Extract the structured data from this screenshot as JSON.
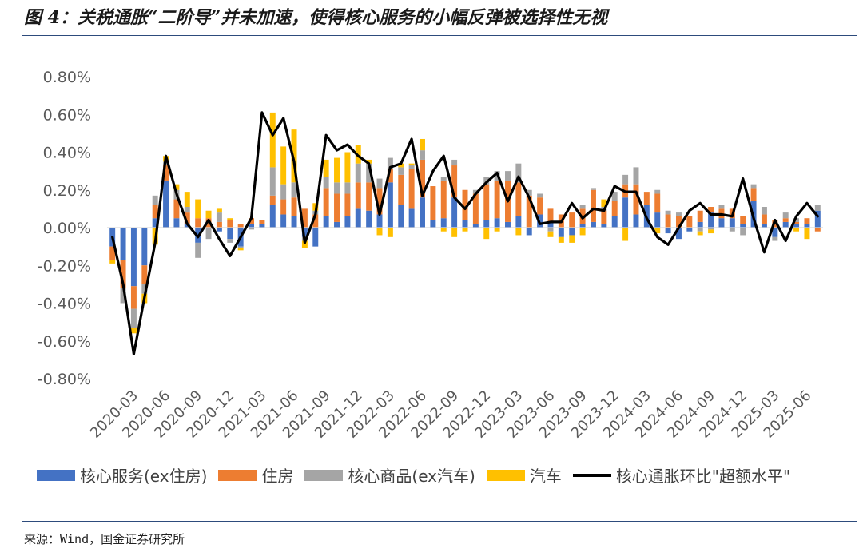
{
  "title": "图 4：关税通胀“二阶导”并未加速，使得核心服务的小幅反弹被选择性无视",
  "source": "来源：Wind，国金证券研究所",
  "chart_data": {
    "type": "bar",
    "stacked": true,
    "ylim": [
      -0.8,
      0.8
    ],
    "yticks": [
      "-0.80%",
      "-0.60%",
      "-0.40%",
      "-0.20%",
      "0.00%",
      "0.20%",
      "0.40%",
      "0.60%",
      "0.80%"
    ],
    "ytick_values": [
      -0.8,
      -0.6,
      -0.4,
      -0.2,
      0.0,
      0.2,
      0.4,
      0.6,
      0.8
    ],
    "xtick_labels": [
      "2020-03",
      "2020-06",
      "2020-09",
      "2020-12",
      "2021-03",
      "2021-06",
      "2021-09",
      "2021-12",
      "2022-03",
      "2022-06",
      "2022-09",
      "2022-12",
      "2023-03",
      "2023-06",
      "2023-09",
      "2023-12",
      "2024-03",
      "2024-06",
      "2024-09",
      "2024-12",
      "2025-03",
      "2025-06"
    ],
    "xtick_index": [
      2,
      5,
      8,
      11,
      14,
      17,
      20,
      23,
      26,
      29,
      32,
      35,
      38,
      41,
      44,
      47,
      50,
      53,
      56,
      59,
      62,
      65
    ],
    "categories": [
      "2020-01",
      "2020-02",
      "2020-03",
      "2020-04",
      "2020-05",
      "2020-06",
      "2020-07",
      "2020-08",
      "2020-09",
      "2020-10",
      "2020-11",
      "2020-12",
      "2021-01",
      "2021-02",
      "2021-03",
      "2021-04",
      "2021-05",
      "2021-06",
      "2021-07",
      "2021-08",
      "2021-09",
      "2021-10",
      "2021-11",
      "2021-12",
      "2022-01",
      "2022-02",
      "2022-03",
      "2022-04",
      "2022-05",
      "2022-06",
      "2022-07",
      "2022-08",
      "2022-09",
      "2022-10",
      "2022-11",
      "2022-12",
      "2023-01",
      "2023-02",
      "2023-03",
      "2023-04",
      "2023-05",
      "2023-06",
      "2023-07",
      "2023-08",
      "2023-09",
      "2023-10",
      "2023-11",
      "2023-12",
      "2024-01",
      "2024-02",
      "2024-03",
      "2024-04",
      "2024-05",
      "2024-06",
      "2024-07",
      "2024-08",
      "2024-09",
      "2024-10",
      "2024-11",
      "2024-12",
      "2025-01",
      "2025-02",
      "2025-03",
      "2025-04",
      "2025-05",
      "2025-06",
      "2025-07"
    ],
    "series": [
      {
        "name": "核心服务(ex住房)",
        "color": "#4472c4",
        "type": "bar",
        "values": [
          -0.1,
          -0.17,
          -0.31,
          -0.2,
          0.05,
          0.25,
          0.05,
          0.02,
          -0.08,
          0.0,
          -0.02,
          -0.06,
          -0.1,
          0.02,
          0.02,
          0.12,
          0.07,
          0.06,
          -0.05,
          -0.1,
          0.06,
          0.03,
          0.06,
          0.1,
          0.09,
          0.07,
          0.24,
          0.12,
          0.1,
          0.16,
          0.04,
          0.05,
          0.16,
          0.04,
          0.02,
          0.04,
          0.05,
          0.03,
          0.06,
          -0.04,
          0.07,
          0.03,
          -0.05,
          -0.04,
          0.02,
          0.03,
          0.02,
          0.06,
          0.16,
          0.07,
          0.12,
          0.08,
          -0.03,
          -0.06,
          -0.02,
          0.03,
          0.08,
          0.05,
          0.05,
          0.02,
          0.14,
          0.02,
          -0.05,
          0.03,
          0.02,
          0.02,
          0.09
        ]
      },
      {
        "name": "住房",
        "color": "#ed7d31",
        "type": "bar",
        "values": [
          -0.07,
          -0.15,
          -0.12,
          -0.1,
          0.07,
          0.08,
          0.1,
          0.06,
          0.05,
          0.05,
          0.03,
          0.04,
          0.02,
          0.03,
          0.02,
          0.05,
          0.08,
          0.1,
          0.1,
          0.07,
          0.15,
          0.15,
          0.12,
          0.14,
          0.15,
          0.14,
          0.07,
          0.16,
          0.21,
          0.2,
          0.18,
          0.2,
          0.17,
          0.16,
          0.16,
          0.19,
          0.2,
          0.22,
          0.18,
          0.17,
          0.09,
          0.07,
          0.07,
          0.08,
          0.08,
          0.17,
          0.07,
          0.08,
          0.07,
          0.16,
          0.07,
          0.1,
          0.07,
          0.06,
          0.06,
          0.06,
          0.03,
          0.05,
          0.05,
          0.04,
          0.07,
          0.05,
          0.04,
          0.02,
          0.01,
          0.03,
          -0.02
        ]
      },
      {
        "name": "核心商品(ex汽车)",
        "color": "#a5a5a5",
        "type": "bar",
        "values": [
          0.0,
          -0.08,
          -0.1,
          -0.05,
          0.05,
          0.02,
          0.05,
          0.03,
          -0.08,
          -0.06,
          0.05,
          -0.02,
          -0.01,
          -0.01,
          0.0,
          0.15,
          0.08,
          0.08,
          -0.02,
          0.02,
          0.06,
          0.06,
          0.06,
          0.1,
          0.1,
          0.05,
          0.06,
          0.04,
          0.02,
          0.05,
          0.0,
          0.02,
          0.03,
          0.0,
          0.02,
          0.04,
          0.05,
          0.05,
          0.1,
          0.03,
          0.02,
          -0.02,
          0.0,
          0.0,
          0.02,
          0.01,
          0.02,
          0.05,
          0.05,
          0.09,
          0.0,
          0.02,
          0.02,
          0.02,
          0.0,
          -0.02,
          -0.01,
          0.02,
          -0.02,
          -0.04,
          0.02,
          0.04,
          -0.02,
          0.03,
          0.02,
          0.0,
          0.03
        ]
      },
      {
        "name": "汽车",
        "color": "#ffc000",
        "type": "bar",
        "values": [
          -0.02,
          0.0,
          -0.03,
          -0.05,
          -0.09,
          0.03,
          0.03,
          0.08,
          0.1,
          0.04,
          0.02,
          0.01,
          -0.01,
          0.0,
          0.0,
          0.29,
          0.2,
          0.28,
          -0.04,
          0.04,
          0.09,
          0.13,
          0.16,
          0.1,
          0.02,
          -0.04,
          -0.05,
          0.02,
          0.01,
          0.06,
          0.0,
          -0.02,
          -0.05,
          -0.02,
          0.0,
          -0.06,
          -0.02,
          0.0,
          -0.04,
          0.0,
          0.0,
          -0.03,
          -0.03,
          -0.04,
          -0.04,
          0.0,
          0.04,
          0.0,
          -0.07,
          0.0,
          0.0,
          -0.03,
          0.0,
          0.0,
          0.0,
          -0.02,
          -0.02,
          0.0,
          0.0,
          0.0,
          0.0,
          0.0,
          0.0,
          0.0,
          -0.02,
          -0.06,
          0.0
        ]
      },
      {
        "name": "核心通胀环比\"超额水平\"",
        "color": "#000000",
        "type": "line",
        "values": [
          -0.05,
          -0.3,
          -0.67,
          -0.37,
          -0.08,
          0.38,
          0.18,
          0.02,
          -0.05,
          0.04,
          -0.06,
          -0.15,
          -0.05,
          0.05,
          0.61,
          0.49,
          0.58,
          0.35,
          -0.08,
          0.07,
          0.49,
          0.41,
          0.44,
          0.38,
          0.34,
          0.07,
          0.32,
          0.34,
          0.47,
          0.17,
          0.3,
          0.38,
          0.16,
          0.1,
          0.18,
          0.24,
          0.29,
          0.14,
          0.27,
          0.16,
          0.02,
          0.03,
          0.03,
          0.13,
          0.05,
          0.1,
          0.09,
          0.22,
          0.19,
          0.19,
          0.05,
          -0.05,
          -0.09,
          0.0,
          0.09,
          0.13,
          0.07,
          0.07,
          0.06,
          0.26,
          0.05,
          -0.13,
          0.04,
          -0.07,
          0.06,
          0.13,
          0.06
        ]
      }
    ]
  },
  "legend": {
    "items": [
      "核心服务(ex住房)",
      "住房",
      "核心商品(ex汽车)",
      "汽车",
      "核心通胀环比\"超额水平\""
    ]
  }
}
